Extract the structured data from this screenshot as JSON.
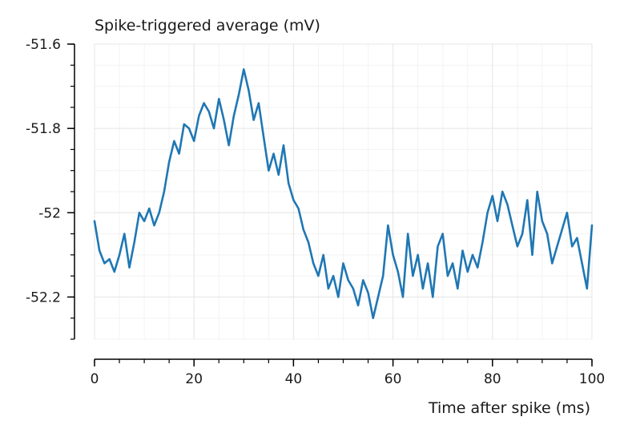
{
  "chart_data": {
    "type": "line",
    "title": "Spike-triggered average (mV)",
    "xlabel": "Time after spike (ms)",
    "ylabel": "",
    "xlim": [
      0,
      100
    ],
    "ylim": [
      -52.3,
      -51.6
    ],
    "x_ticks": [
      0,
      20,
      40,
      60,
      80,
      100
    ],
    "x_tick_labels": [
      "0",
      "20",
      "40",
      "60",
      "80",
      "100"
    ],
    "y_ticks": [
      -51.6,
      -51.8,
      -52,
      -52.2
    ],
    "y_tick_labels": [
      "-51.6",
      "-51.8",
      "-52",
      "-52.2"
    ],
    "grid": true,
    "series": [
      {
        "color": "#1f77b4",
        "x": [
          0,
          1,
          2,
          3,
          4,
          5,
          6,
          7,
          8,
          9,
          10,
          11,
          12,
          13,
          14,
          15,
          16,
          17,
          18,
          19,
          20,
          21,
          22,
          23,
          24,
          25,
          26,
          27,
          28,
          29,
          30,
          31,
          32,
          33,
          34,
          35,
          36,
          37,
          38,
          39,
          40,
          41,
          42,
          43,
          44,
          45,
          46,
          47,
          48,
          49,
          50,
          51,
          52,
          53,
          54,
          55,
          56,
          57,
          58,
          59,
          60,
          61,
          62,
          63,
          64,
          65,
          66,
          67,
          68,
          69,
          70,
          71,
          72,
          73,
          74,
          75,
          76,
          77,
          78,
          79,
          80,
          81,
          82,
          83,
          84,
          85,
          86,
          87,
          88,
          89,
          90,
          91,
          92,
          93,
          94,
          95,
          96,
          97,
          98,
          99,
          100
        ],
        "y": [
          -52.02,
          -52.09,
          -52.12,
          -52.11,
          -52.14,
          -52.1,
          -52.05,
          -52.13,
          -52.07,
          -52.0,
          -52.02,
          -51.99,
          -52.03,
          -52.0,
          -51.95,
          -51.88,
          -51.83,
          -51.86,
          -51.79,
          -51.8,
          -51.83,
          -51.77,
          -51.74,
          -51.76,
          -51.8,
          -51.73,
          -51.78,
          -51.84,
          -51.77,
          -51.72,
          -51.66,
          -51.71,
          -51.78,
          -51.74,
          -51.82,
          -51.9,
          -51.86,
          -51.91,
          -51.84,
          -51.93,
          -51.97,
          -51.99,
          -52.04,
          -52.07,
          -52.12,
          -52.15,
          -52.1,
          -52.18,
          -52.15,
          -52.2,
          -52.12,
          -52.16,
          -52.18,
          -52.22,
          -52.16,
          -52.19,
          -52.25,
          -52.2,
          -52.15,
          -52.03,
          -52.1,
          -52.14,
          -52.2,
          -52.05,
          -52.15,
          -52.1,
          -52.18,
          -52.12,
          -52.2,
          -52.08,
          -52.05,
          -52.15,
          -52.12,
          -52.18,
          -52.09,
          -52.14,
          -52.1,
          -52.13,
          -52.07,
          -52.0,
          -51.96,
          -52.02,
          -51.95,
          -51.98,
          -52.03,
          -52.08,
          -52.05,
          -51.97,
          -52.1,
          -51.95,
          -52.02,
          -52.05,
          -52.12,
          -52.08,
          -52.04,
          -52.0,
          -52.08,
          -52.06,
          -52.12,
          -52.18,
          -52.03
        ]
      }
    ]
  }
}
